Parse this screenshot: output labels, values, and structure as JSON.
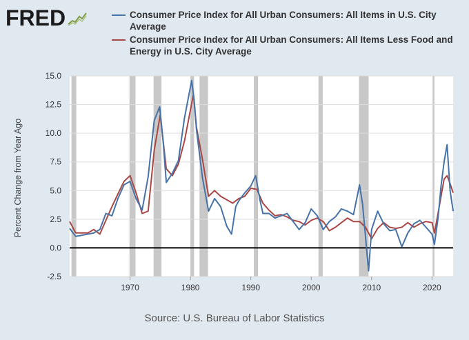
{
  "brand": {
    "logo_text": "FRED",
    "logo_icon": "chart-line-icon"
  },
  "source_text": "Source: U.S. Bureau of Labor Statistics",
  "chart_data": {
    "type": "line",
    "title": "",
    "xlabel": "",
    "ylabel": "Percent Change from Year Ago",
    "xlim": [
      1960,
      2023.5
    ],
    "ylim": [
      -2.5,
      15.0
    ],
    "y_ticks": [
      "-2.5",
      "0.0",
      "2.5",
      "5.0",
      "7.5",
      "10.0",
      "12.5",
      "15.0"
    ],
    "x_ticks": [
      "1970",
      "1980",
      "1990",
      "2000",
      "2010",
      "2020"
    ],
    "grid": "horizontal",
    "legend_position": "top",
    "zero_line": true,
    "recessions": [
      [
        1960.3,
        1961.1
      ],
      [
        1969.9,
        1970.9
      ],
      [
        1973.9,
        1975.2
      ],
      [
        1980.0,
        1980.6
      ],
      [
        1981.5,
        1982.9
      ],
      [
        1990.5,
        1991.2
      ],
      [
        2001.2,
        2001.9
      ],
      [
        2007.9,
        2009.5
      ],
      [
        2020.1,
        2020.4
      ]
    ],
    "colors": {
      "all_items": "#4572a7",
      "core": "#aa4643",
      "recession": "#c8c8c8",
      "zero_line": "#000000"
    },
    "series": [
      {
        "name": "Consumer Price Index for All Urban Consumers: All Items in U.S. City Average",
        "x": [
          1960,
          1961,
          1962,
          1963,
          1964,
          1965,
          1966,
          1967,
          1968,
          1969,
          1970,
          1971,
          1972,
          1973,
          1974,
          1974.9,
          1975.5,
          1976,
          1977,
          1978,
          1979,
          1980.2,
          1980.6,
          1981,
          1982,
          1983,
          1984,
          1985,
          1986,
          1986.8,
          1987.5,
          1988,
          1989,
          1990,
          1990.8,
          1991.5,
          1992,
          1993,
          1994,
          1995,
          1996,
          1997,
          1998,
          1999,
          2000,
          2001,
          2002,
          2003,
          2004,
          2005,
          2006,
          2007,
          2008,
          2008.5,
          2009.5,
          2010,
          2011,
          2012,
          2013,
          2014,
          2015,
          2016,
          2017,
          2018,
          2019,
          2020,
          2020.4,
          2021,
          2021.5,
          2022,
          2022.5,
          2023,
          2023.5
        ],
        "values": [
          1.7,
          1.0,
          1.1,
          1.2,
          1.3,
          1.6,
          3.0,
          2.8,
          4.3,
          5.5,
          5.8,
          4.3,
          3.3,
          6.2,
          11.1,
          12.3,
          9.2,
          5.7,
          6.5,
          7.6,
          11.3,
          14.6,
          12.9,
          10.3,
          6.1,
          3.2,
          4.3,
          3.6,
          1.9,
          1.2,
          3.6,
          4.1,
          4.8,
          5.4,
          6.3,
          4.2,
          3.0,
          3.0,
          2.6,
          2.8,
          3.0,
          2.3,
          1.6,
          2.2,
          3.4,
          2.8,
          1.6,
          2.3,
          2.7,
          3.4,
          3.2,
          2.9,
          5.5,
          3.8,
          -2.0,
          1.6,
          3.2,
          2.1,
          1.5,
          1.6,
          0.1,
          1.3,
          2.1,
          2.4,
          1.8,
          1.2,
          0.3,
          2.6,
          5.4,
          7.5,
          9.0,
          5.0,
          3.2
        ]
      },
      {
        "name": "Consumer Price Index for All Urban Consumers: All Items Less Food and Energy in U.S. City Average",
        "x": [
          1960,
          1961,
          1962,
          1963,
          1964,
          1965,
          1966,
          1967,
          1968,
          1969,
          1970,
          1971,
          1972,
          1973,
          1974,
          1975,
          1976,
          1977,
          1978,
          1979,
          1980.5,
          1981,
          1982,
          1983,
          1984,
          1985,
          1986,
          1987,
          1988,
          1989,
          1990,
          1991,
          1992,
          1993,
          1994,
          1995,
          1996,
          1997,
          1998,
          1999,
          2000,
          2001,
          2002,
          2003,
          2004,
          2005,
          2006,
          2007,
          2008,
          2009,
          2010,
          2011,
          2012,
          2013,
          2014,
          2015,
          2016,
          2017,
          2018,
          2019,
          2020,
          2020.4,
          2021,
          2021.5,
          2022,
          2022.5,
          2023,
          2023.5
        ],
        "values": [
          2.3,
          1.3,
          1.3,
          1.3,
          1.6,
          1.2,
          2.4,
          3.6,
          4.7,
          5.8,
          6.3,
          4.8,
          3.0,
          3.2,
          8.5,
          11.6,
          6.9,
          6.3,
          7.3,
          9.3,
          13.4,
          10.5,
          7.7,
          4.5,
          5.0,
          4.5,
          4.2,
          3.9,
          4.3,
          4.5,
          5.2,
          5.1,
          3.9,
          3.3,
          2.8,
          2.9,
          2.7,
          2.4,
          2.3,
          2.0,
          2.4,
          2.6,
          2.3,
          1.5,
          1.8,
          2.2,
          2.6,
          2.3,
          2.3,
          1.8,
          0.8,
          1.7,
          2.2,
          1.8,
          1.7,
          1.8,
          2.2,
          1.8,
          2.1,
          2.3,
          2.2,
          1.3,
          3.0,
          4.5,
          6.0,
          6.3,
          5.6,
          4.8
        ]
      }
    ]
  }
}
